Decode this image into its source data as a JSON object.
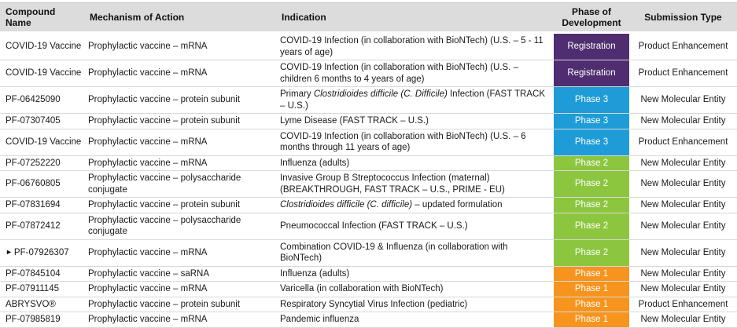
{
  "chart_data": {
    "type": "table",
    "columns": [
      "Compound Name",
      "Mechanism of Action",
      "Indication",
      "Phase of Development",
      "Submission Type"
    ],
    "phase_colors": {
      "Registration": "#4F2D70",
      "Phase 3": "#1E9CD7",
      "Phase 2": "#8CC63F",
      "Phase 1": "#F7941E"
    },
    "marker_icon": "►",
    "rows": [
      {
        "compound": "COVID-19 Vaccine",
        "marker": "",
        "mechanism": "Prophylactic vaccine – mRNA",
        "indication": [
          {
            "text": "COVID-19 Infection (in collaboration with BioNTech) (U.S. – 5 - 11 years of age)",
            "italic": false
          }
        ],
        "phase": "Registration",
        "submission": "Product Enhancement"
      },
      {
        "compound": "COVID-19 Vaccine",
        "marker": "",
        "mechanism": "Prophylactic vaccine – mRNA",
        "indication": [
          {
            "text": "COVID-19 Infection (in collaboration with BioNTech) (U.S. – children 6 months to 4 years of age)",
            "italic": false
          }
        ],
        "phase": "Registration",
        "submission": "Product Enhancement"
      },
      {
        "compound": "PF-06425090",
        "marker": "",
        "mechanism": "Prophylactic vaccine – protein subunit",
        "indication": [
          {
            "text": "Primary ",
            "italic": false
          },
          {
            "text": "Clostridioides difficile (C. Difficile)",
            "italic": true
          },
          {
            "text": " Infection (FAST TRACK – U.S.)",
            "italic": false
          }
        ],
        "phase": "Phase 3",
        "submission": "New Molecular Entity"
      },
      {
        "compound": "PF-07307405",
        "marker": "",
        "mechanism": "Prophylactic vaccine – protein subunit",
        "indication": [
          {
            "text": "Lyme Disease (FAST TRACK – U.S.)",
            "italic": false
          }
        ],
        "phase": "Phase 3",
        "submission": "New Molecular Entity"
      },
      {
        "compound": "COVID-19 Vaccine",
        "marker": "",
        "mechanism": "Prophylactic vaccine – mRNA",
        "indication": [
          {
            "text": "COVID-19 Infection (in collaboration with BioNTech) (U.S. – 6 months through 11 years of age)",
            "italic": false
          }
        ],
        "phase": "Phase 3",
        "submission": "Product Enhancement"
      },
      {
        "compound": "PF-07252220",
        "marker": "",
        "mechanism": "Prophylactic vaccine – mRNA",
        "indication": [
          {
            "text": "Influenza (adults)",
            "italic": false
          }
        ],
        "phase": "Phase 2",
        "submission": "New Molecular Entity"
      },
      {
        "compound": "PF-06760805",
        "marker": "",
        "mechanism": "Prophylactic vaccine – polysaccharide conjugate",
        "indication": [
          {
            "text": "Invasive Group B Streptococcus Infection (maternal) (BREAKTHROUGH, FAST TRACK – U.S., PRIME - EU)",
            "italic": false
          }
        ],
        "phase": "Phase 2",
        "submission": "New Molecular Entity"
      },
      {
        "compound": "PF-07831694",
        "marker": "",
        "mechanism": "Prophylactic vaccine – protein subunit",
        "indication": [
          {
            "text": "Clostridioides difficile (C. difficile)",
            "italic": true
          },
          {
            "text": " – updated formulation",
            "italic": false
          }
        ],
        "phase": "Phase 2",
        "submission": "New Molecular Entity"
      },
      {
        "compound": "PF-07872412",
        "marker": "",
        "mechanism": "Prophylactic vaccine – polysaccharide conjugate",
        "indication": [
          {
            "text": "Pneumococcal Infection (FAST TRACK – U.S.)",
            "italic": false
          }
        ],
        "phase": "Phase 2",
        "submission": "New Molecular Entity"
      },
      {
        "compound": "PF-07926307",
        "marker": "►",
        "mechanism": "Prophylactic vaccine – mRNA",
        "indication": [
          {
            "text": "Combination COVID-19 & Influenza (in collaboration with BioNTech)",
            "italic": false
          }
        ],
        "phase": "Phase 2",
        "submission": "New Molecular Entity"
      },
      {
        "compound": "PF-07845104",
        "marker": "",
        "mechanism": "Prophylactic vaccine – saRNA",
        "indication": [
          {
            "text": "Influenza (adults)",
            "italic": false
          }
        ],
        "phase": "Phase 1",
        "submission": "New Molecular Entity"
      },
      {
        "compound": "PF-07911145",
        "marker": "",
        "mechanism": "Prophylactic vaccine – mRNA",
        "indication": [
          {
            "text": "Varicella (in collaboration with BioNTech)",
            "italic": false
          }
        ],
        "phase": "Phase 1",
        "submission": "New Molecular Entity"
      },
      {
        "compound": "ABRYSVO®",
        "marker": "",
        "mechanism": "Prophylactic vaccine – protein subunit",
        "indication": [
          {
            "text": "Respiratory Syncytial Virus Infection (pediatric)",
            "italic": false
          }
        ],
        "phase": "Phase 1",
        "submission": "Product Enhancement"
      },
      {
        "compound": "PF-07985819",
        "marker": "",
        "mechanism": "Prophylactic vaccine – mRNA",
        "indication": [
          {
            "text": "Pandemic influenza",
            "italic": false
          }
        ],
        "phase": "Phase 1",
        "submission": "New Molecular Entity"
      }
    ]
  }
}
